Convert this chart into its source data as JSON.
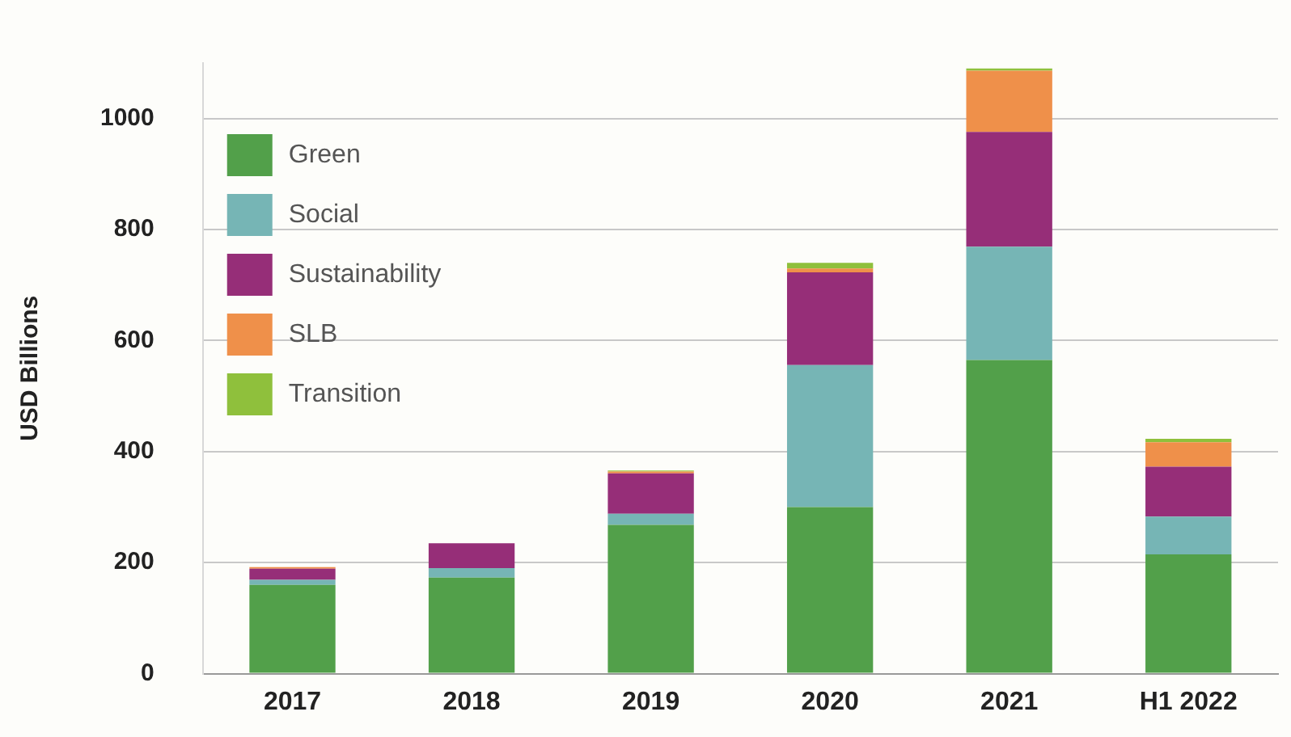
{
  "chart_data": {
    "type": "bar",
    "ylabel": "USD Billions",
    "categories": [
      "2017",
      "2018",
      "2019",
      "2020",
      "2021",
      "H1 2022"
    ],
    "series": [
      {
        "name": "Green",
        "color": "#52a04a",
        "values": [
          160,
          173,
          268,
          300,
          565,
          215
        ]
      },
      {
        "name": "Social",
        "color": "#76b5b5",
        "values": [
          9,
          17,
          20,
          256,
          204,
          68
        ]
      },
      {
        "name": "Sustainability",
        "color": "#962e78",
        "values": [
          20,
          45,
          73,
          167,
          207,
          90
        ]
      },
      {
        "name": "SLB",
        "color": "#ef904a",
        "values": [
          3,
          null,
          3,
          7,
          110,
          44
        ]
      },
      {
        "name": "Transition",
        "color": "#8fc03c",
        "values": [
          null,
          null,
          2,
          10,
          4,
          6
        ]
      }
    ],
    "stacked": true,
    "ylim": [
      0,
      1100
    ],
    "yticks": [
      0,
      200,
      400,
      600,
      800,
      1000
    ],
    "grid": "y",
    "legend": "top left"
  }
}
